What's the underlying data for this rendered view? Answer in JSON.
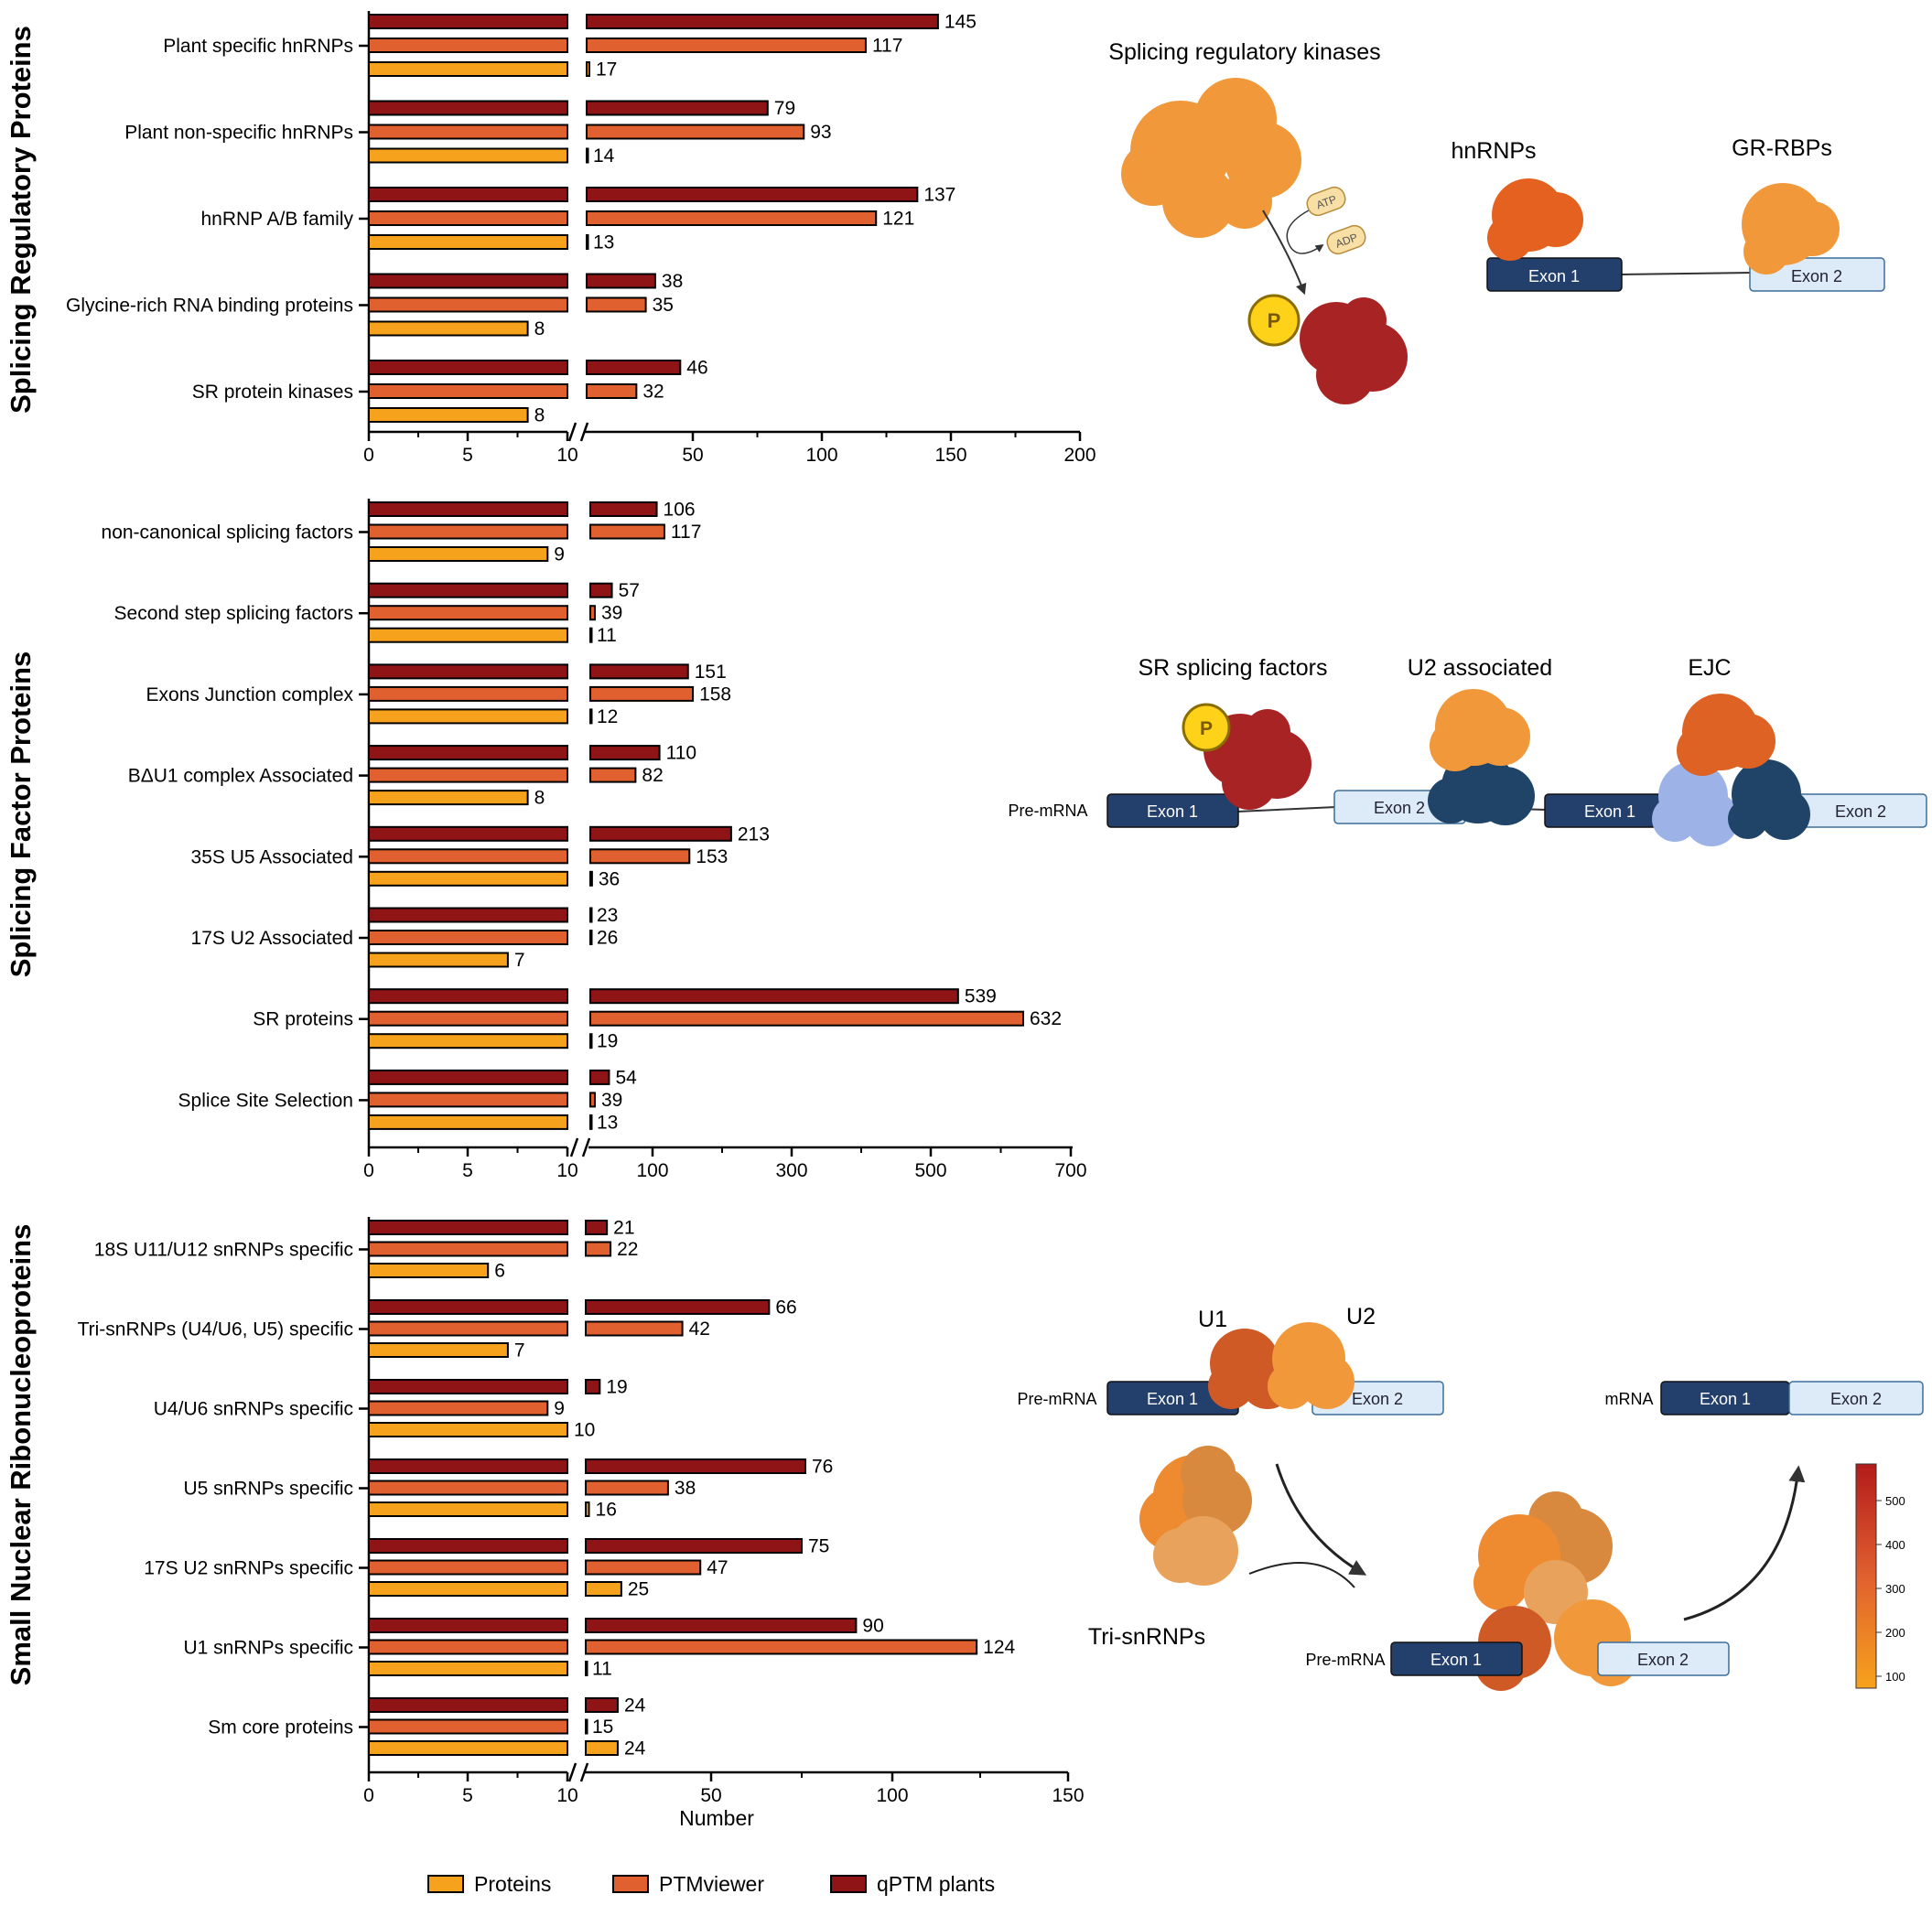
{
  "colors": {
    "proteins": "#F7A21C",
    "ptmviewer": "#E0602F",
    "qptm": "#8E1416",
    "exon_dark": "#233F6C",
    "exon_light": "#DCEBF7",
    "phospho": "#FFD21A"
  },
  "legend": {
    "proteins": "Proteins",
    "ptmviewer": "PTMviewer",
    "qptm": "qPTM plants"
  },
  "xlabel": "Number",
  "chart_data": [
    {
      "type": "bar",
      "orientation": "horizontal",
      "title": "Splicing Regulatory Proteins",
      "xlabel": "",
      "axis_ticks": [
        "0",
        "5",
        "10",
        "50",
        "100",
        "150",
        "200"
      ],
      "axis_break": [
        10,
        10
      ],
      "xlim": [
        0,
        200
      ],
      "categories": [
        "Plant specific hnRNPs",
        "Plant non-specific hnRNPs",
        "hnRNP A/B family",
        "Glycine-rich RNA binding proteins",
        "SR protein kinases"
      ],
      "series": [
        {
          "name": "qPTM plants",
          "values": [
            145,
            79,
            137,
            38,
            46
          ]
        },
        {
          "name": "PTMviewer",
          "values": [
            117,
            93,
            121,
            35,
            32
          ]
        },
        {
          "name": "Proteins",
          "values": [
            17,
            14,
            13,
            8,
            8
          ]
        }
      ]
    },
    {
      "type": "bar",
      "orientation": "horizontal",
      "title": "Splicing Factor Proteins",
      "xlabel": "",
      "axis_ticks": [
        "0",
        "5",
        "10",
        "100",
        "300",
        "500",
        "700"
      ],
      "axis_break": [
        10,
        10
      ],
      "xlim": [
        0,
        700
      ],
      "categories": [
        "non-canonical splicing factors",
        "Second step splicing factors",
        "Exons Junction complex",
        "BΔU1 complex Associated",
        "35S U5 Associated",
        "17S U2 Associated",
        "SR proteins",
        "Splice Site Selection"
      ],
      "series": [
        {
          "name": "qPTM plants",
          "values": [
            106,
            57,
            151,
            110,
            213,
            23,
            539,
            54
          ]
        },
        {
          "name": "PTMviewer",
          "values": [
            117,
            39,
            158,
            82,
            153,
            26,
            632,
            39
          ]
        },
        {
          "name": "Proteins",
          "values": [
            9,
            11,
            12,
            8,
            36,
            7,
            19,
            13
          ]
        }
      ]
    },
    {
      "type": "bar",
      "orientation": "horizontal",
      "title": "Small Nuclear Ribonucleoproteins",
      "xlabel": "Number",
      "axis_ticks": [
        "0",
        "5",
        "10",
        "50",
        "100",
        "150"
      ],
      "axis_break": [
        10,
        10
      ],
      "xlim": [
        0,
        150
      ],
      "categories": [
        "18S U11/U12 snRNPs specific",
        "Tri-snRNPs (U4/U6, U5) specific",
        "U4/U6 snRNPs specific",
        "U5 snRNPs specific",
        "17S U2 snRNPs specific",
        "U1 snRNPs specific",
        "Sm core proteins"
      ],
      "series": [
        {
          "name": "qPTM plants",
          "values": [
            21,
            66,
            19,
            76,
            75,
            90,
            24
          ]
        },
        {
          "name": "PTMviewer",
          "values": [
            22,
            42,
            9,
            38,
            47,
            124,
            15
          ]
        },
        {
          "name": "Proteins",
          "values": [
            6,
            7,
            10,
            16,
            25,
            11,
            24
          ]
        }
      ]
    }
  ],
  "diagrams": {
    "kinases": {
      "title": "Splicing regulatory kinases",
      "hnrnps": "hnRNPs",
      "grrbps": "GR-RBPs",
      "atp": "ATP",
      "adp": "ADP",
      "p": "P",
      "exon1": "Exon 1",
      "exon2": "Exon 2"
    },
    "factors": {
      "sr": "SR splicing factors",
      "u2": "U2 associated",
      "ejc": "EJC",
      "premrna": "Pre-mRNA",
      "p": "P",
      "exon1a": "Exon 1",
      "exon2a": "Exon 2",
      "exon1b": "Exon 1",
      "exon2b": "Exon 2"
    },
    "snrnp": {
      "u1": "U1",
      "u2": "U2",
      "premrna_top": "Pre-mRNA",
      "mrna": "mRNA",
      "trisnrnps": "Tri-snRNPs",
      "premrna_bottom": "Pre-mRNA",
      "exon1a": "Exon 1",
      "exon2a": "Exon 2",
      "exon1b": "Exon 1",
      "exon2b": "Exon 2",
      "exon1c": "Exon 1",
      "exon2c": "Exon 2"
    },
    "colorbar": {
      "ticks": [
        "500",
        "400",
        "300",
        "200",
        "100"
      ]
    }
  }
}
